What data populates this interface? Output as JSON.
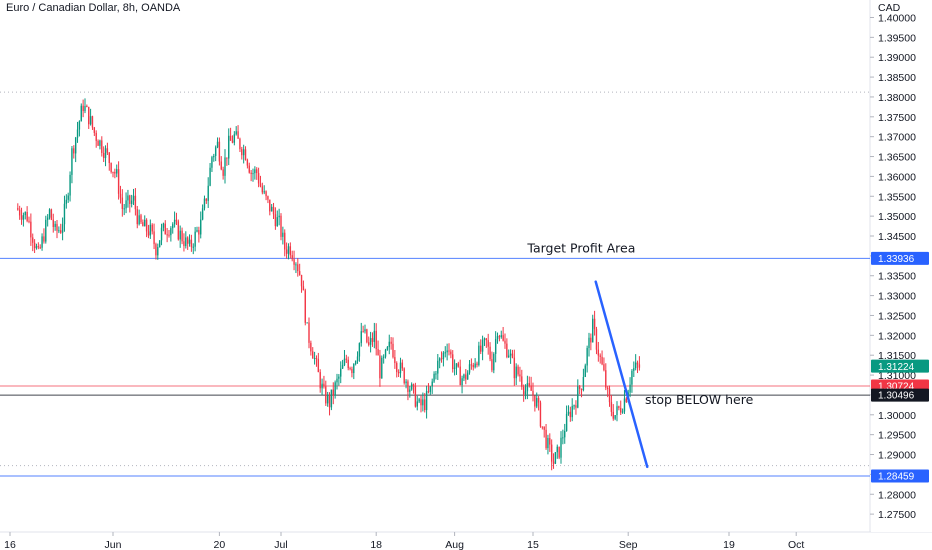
{
  "header": {
    "title": "Euro / Canadian Dollar, 8h, OANDA"
  },
  "axis": {
    "currency": "CAD"
  },
  "chart_data": {
    "type": "candlestick",
    "title": "Euro / Canadian Dollar, 8h, OANDA",
    "ylabel": "CAD",
    "ylim": [
      1.2705,
      1.4044
    ],
    "y_ticks": [
      "1.40000",
      "1.39500",
      "1.39000",
      "1.38500",
      "1.38000",
      "1.37500",
      "1.37000",
      "1.36500",
      "1.36000",
      "1.35500",
      "1.35000",
      "1.34500",
      "1.34000",
      "1.33500",
      "1.33000",
      "1.32500",
      "1.32000",
      "1.31500",
      "1.31000",
      "1.30500",
      "1.30000",
      "1.29500",
      "1.29000",
      "1.28500",
      "1.28000",
      "1.27500"
    ],
    "x_ticks": [
      {
        "label": "16",
        "day": -15
      },
      {
        "label": "Jun",
        "day": 1
      },
      {
        "label": "20",
        "day": 20
      },
      {
        "label": "Jul",
        "day": 31
      },
      {
        "label": "18",
        "day": 48
      },
      {
        "label": "Aug",
        "day": 62
      },
      {
        "label": "15",
        "day": 76
      },
      {
        "label": "Sep",
        "day": 93
      },
      {
        "label": "19",
        "day": 111
      },
      {
        "label": "Oct",
        "day": 123
      }
    ],
    "price_path": [
      [
        -16,
        1.352
      ],
      [
        -14,
        1.35
      ],
      [
        -12,
        1.34
      ],
      [
        -10,
        1.351
      ],
      [
        -9,
        1.346
      ],
      [
        -8,
        1.347
      ],
      [
        -7,
        1.353
      ],
      [
        -6,
        1.366
      ],
      [
        -5,
        1.372
      ],
      [
        -4,
        1.378
      ],
      [
        -3,
        1.375
      ],
      [
        -2,
        1.371
      ],
      [
        0,
        1.366
      ],
      [
        2,
        1.36
      ],
      [
        3,
        1.352
      ],
      [
        5,
        1.354
      ],
      [
        6,
        1.348
      ],
      [
        8,
        1.346
      ],
      [
        9,
        1.342
      ],
      [
        10,
        1.346
      ],
      [
        12,
        1.348
      ],
      [
        14,
        1.344
      ],
      [
        15,
        1.342
      ],
      [
        17,
        1.348
      ],
      [
        18,
        1.355
      ],
      [
        19,
        1.365
      ],
      [
        20,
        1.368
      ],
      [
        21,
        1.362
      ],
      [
        22,
        1.368
      ],
      [
        23,
        1.37
      ],
      [
        25,
        1.366
      ],
      [
        26,
        1.361
      ],
      [
        27,
        1.361
      ],
      [
        28,
        1.356
      ],
      [
        29,
        1.353
      ],
      [
        31,
        1.348
      ],
      [
        32,
        1.342
      ],
      [
        33,
        1.342
      ],
      [
        34,
        1.339
      ],
      [
        35,
        1.334
      ],
      [
        36,
        1.321
      ],
      [
        37,
        1.316
      ],
      [
        38,
        1.31
      ],
      [
        39,
        1.305
      ],
      [
        40,
        1.303
      ],
      [
        41,
        1.307
      ],
      [
        43,
        1.314
      ],
      [
        44,
        1.312
      ],
      [
        46,
        1.321
      ],
      [
        47,
        1.317
      ],
      [
        48,
        1.32
      ],
      [
        49,
        1.311
      ],
      [
        51,
        1.318
      ],
      [
        52,
        1.313
      ],
      [
        54,
        1.308
      ],
      [
        55,
        1.305
      ],
      [
        56,
        1.302
      ],
      [
        57,
        1.303
      ],
      [
        58,
        1.306
      ],
      [
        59,
        1.312
      ],
      [
        60,
        1.314
      ],
      [
        61,
        1.318
      ],
      [
        62,
        1.313
      ],
      [
        63,
        1.31
      ],
      [
        64,
        1.309
      ],
      [
        66,
        1.314
      ],
      [
        68,
        1.318
      ],
      [
        69,
        1.313
      ],
      [
        70,
        1.322
      ],
      [
        71,
        1.318
      ],
      [
        72,
        1.316
      ],
      [
        73,
        1.311
      ],
      [
        74,
        1.31
      ],
      [
        75,
        1.306
      ],
      [
        76,
        1.306
      ],
      [
        77,
        1.303
      ],
      [
        78,
        1.297
      ],
      [
        79,
        1.292
      ],
      [
        80,
        1.288
      ],
      [
        81,
        1.291
      ],
      [
        82,
        1.297
      ],
      [
        83,
        1.301
      ],
      [
        84,
        1.304
      ],
      [
        85,
        1.308
      ],
      [
        86,
        1.316
      ],
      [
        87,
        1.322
      ],
      [
        88,
        1.316
      ],
      [
        89,
        1.31
      ],
      [
        90,
        1.302
      ],
      [
        91,
        1.3
      ],
      [
        92,
        1.302
      ],
      [
        93,
        1.305
      ],
      [
        94,
        1.311
      ],
      [
        95,
        1.312
      ]
    ],
    "horizontal_levels": [
      {
        "label": "1.33936",
        "value": 1.33936,
        "color": "#2962ff"
      },
      {
        "label": "1.31224",
        "value": 1.31224,
        "color": "#089981"
      },
      {
        "label": "1.30724",
        "value": 1.30724,
        "color": "#f23645"
      },
      {
        "label": "1.30496",
        "value": 1.30496,
        "color": "#131722"
      },
      {
        "label": "1.28459",
        "value": 1.28459,
        "color": "#2962ff"
      }
    ],
    "dotted_levels": [
      1.3812,
      1.2872
    ],
    "trendline": {
      "from": [
        87.2,
        1.3335
      ],
      "to": [
        96.4,
        1.2869
      ],
      "color": "#2962ff"
    },
    "annotations": [
      {
        "text": "Target Profit Area",
        "x": 75,
        "y": 1.3409
      },
      {
        "text": "stop BELOW here",
        "x": 96,
        "y": 1.3027
      }
    ],
    "colors": {
      "up": "#089981",
      "down": "#f23645"
    },
    "grid": false
  }
}
